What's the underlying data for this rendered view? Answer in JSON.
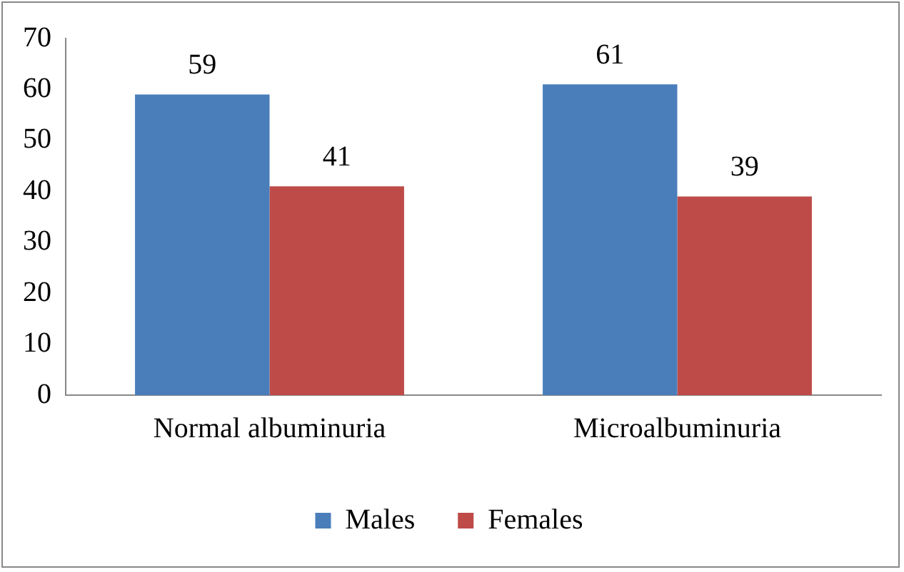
{
  "chart_data": {
    "type": "bar",
    "categories": [
      "Normal albuminuria",
      "Microalbuminuria"
    ],
    "series": [
      {
        "name": "Males",
        "color": "#4a7ebb",
        "values": [
          59,
          61
        ]
      },
      {
        "name": "Females",
        "color": "#be4b48",
        "values": [
          41,
          39
        ]
      }
    ],
    "ylim": [
      0,
      70
    ],
    "yticks": [
      0,
      10,
      20,
      30,
      40,
      50,
      60,
      70
    ],
    "grid": false,
    "legend": "bottom",
    "data_labels": true
  }
}
